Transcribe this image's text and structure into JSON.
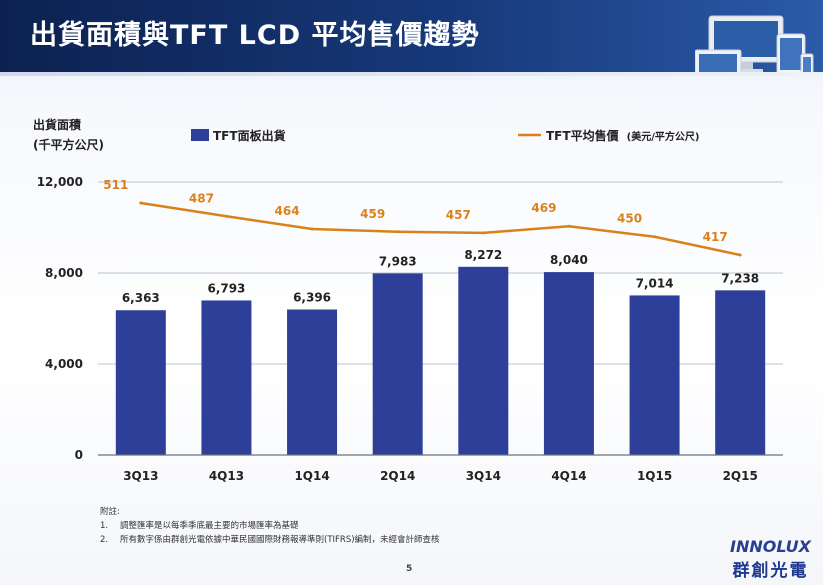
{
  "slide": {
    "title": "出貨面積與TFT LCD 平均售價趨勢",
    "page_number": "5"
  },
  "legend": {
    "left_axis_title_line1": "出貨面積",
    "left_axis_title_line2": "(千平方公尺)",
    "bar_series": "TFT面板出貨",
    "line_series": "TFT平均售價",
    "line_series_unit": "(美元/平方公尺)"
  },
  "notes": {
    "heading": "附註:",
    "items": [
      {
        "num": "1.",
        "text": "調整匯率是以每季季底最主要的市場匯率為基礎"
      },
      {
        "num": "2.",
        "text": "所有數字係由群創光電依據中華民國國際財務報導準則(TIFRS)編制，未經會計師查核"
      }
    ]
  },
  "logo": {
    "english": "INNOLUX",
    "chinese": "群創光電"
  },
  "chart_data": {
    "type": "bar",
    "categories": [
      "3Q13",
      "4Q13",
      "1Q14",
      "2Q14",
      "3Q14",
      "4Q14",
      "1Q15",
      "2Q15"
    ],
    "series": [
      {
        "name": "TFT面板出貨",
        "type": "bar",
        "values": [
          6363,
          6793,
          6396,
          7983,
          8272,
          8040,
          7014,
          7238
        ],
        "color": "#2e3f9a"
      },
      {
        "name": "TFT平均售價",
        "type": "line",
        "values": [
          511,
          487,
          464,
          459,
          457,
          469,
          450,
          417
        ],
        "color": "#d9821c"
      }
    ],
    "bar_labels": [
      "6,363",
      "6,793",
      "6,396",
      "7,983",
      "8,272",
      "8,040",
      "7,014",
      "7,238"
    ],
    "line_labels": [
      "511",
      "487",
      "464",
      "459",
      "457",
      "469",
      "450",
      "417"
    ],
    "y_ticks": [
      "0",
      "4,000",
      "8,000",
      "12,000"
    ],
    "y_tick_values": [
      0,
      4000,
      8000,
      12000
    ],
    "ylim": [
      0,
      12000
    ],
    "line_ylim": [
      0,
      600
    ],
    "grid": true,
    "gridline_color": "#b9c2d0"
  }
}
